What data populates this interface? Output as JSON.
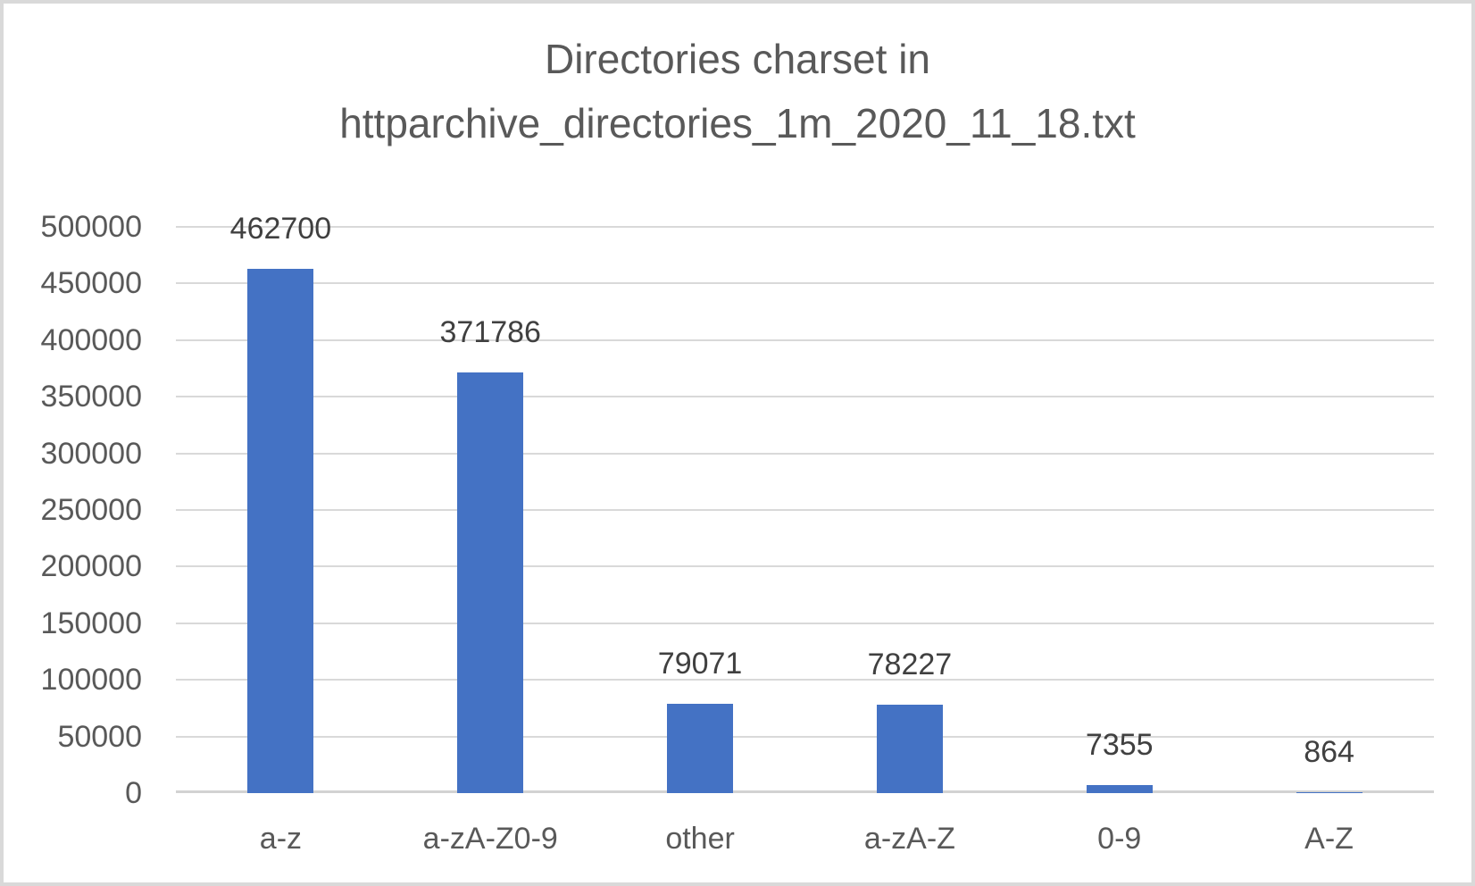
{
  "chart_data": {
    "type": "bar",
    "title": "Directories charset in httparchive_directories_1m_2020_11_18.txt",
    "categories": [
      "a-z",
      "a-zA-Z0-9",
      "other",
      "a-zA-Z",
      "0-9",
      "A-Z"
    ],
    "values": [
      462700,
      371786,
      79071,
      78227,
      7355,
      864
    ],
    "data_labels": [
      "462700",
      "371786",
      "79071",
      "78227",
      "7355",
      "864"
    ],
    "xlabel": "",
    "ylabel": "",
    "ylim": [
      0,
      500000
    ],
    "ytick_step": 50000,
    "ytick_labels": [
      "0",
      "50000",
      "100000",
      "150000",
      "200000",
      "250000",
      "300000",
      "350000",
      "400000",
      "450000",
      "500000"
    ],
    "grid": true,
    "legend_position": "none",
    "colors": {
      "bar": "#4472C4",
      "gridline": "#D9D9D9",
      "axis_line": "#D2D2D2",
      "title_text": "#595959",
      "axis_text": "#595959",
      "data_label_text": "#404040",
      "background": "#FFFFFF",
      "border": "#D9D9D9"
    }
  }
}
